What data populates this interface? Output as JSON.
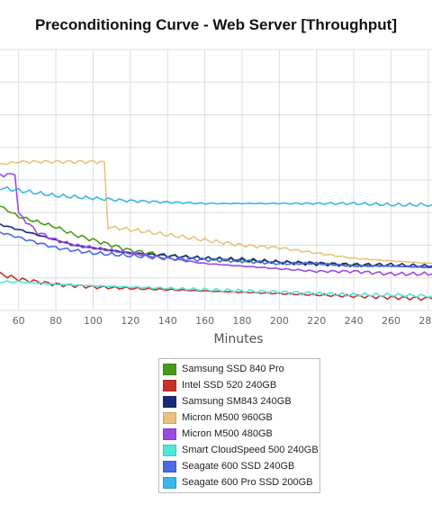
{
  "chart_data": {
    "type": "line",
    "title": "Preconditioning Curve - Web Server [Throughput]",
    "xlabel": "Minutes",
    "ylabel": "",
    "x_ticks": [
      60,
      80,
      100,
      120,
      140,
      160,
      180,
      200,
      220,
      240,
      260,
      280
    ],
    "xlim": [
      50,
      282
    ],
    "ylim": [
      0,
      100
    ],
    "grid": true,
    "legend_position": "bottom-center",
    "series": [
      {
        "name": "Samsung SSD 840 Pro",
        "color": "#4a9a1a",
        "points": [
          [
            50,
            40
          ],
          [
            60,
            36
          ],
          [
            70,
            34
          ],
          [
            80,
            32
          ],
          [
            90,
            29
          ],
          [
            100,
            27
          ],
          [
            110,
            25
          ],
          [
            120,
            23
          ],
          [
            140,
            21
          ],
          [
            160,
            20
          ],
          [
            180,
            19
          ],
          [
            200,
            18.5
          ],
          [
            220,
            18
          ],
          [
            240,
            17.5
          ],
          [
            260,
            17
          ],
          [
            282,
            16.5
          ]
        ]
      },
      {
        "name": "Intel SSD 520 240GB",
        "color": "#c8302a",
        "points": [
          [
            50,
            14
          ],
          [
            60,
            12
          ],
          [
            80,
            10
          ],
          [
            100,
            9
          ],
          [
            120,
            8.5
          ],
          [
            140,
            8
          ],
          [
            160,
            7.5
          ],
          [
            180,
            7
          ],
          [
            200,
            6.5
          ],
          [
            220,
            6
          ],
          [
            240,
            5.5
          ],
          [
            260,
            5
          ],
          [
            282,
            4.5
          ]
        ]
      },
      {
        "name": "Samsung SM843 240GB",
        "color": "#1a2a78",
        "points": [
          [
            50,
            33
          ],
          [
            60,
            31
          ],
          [
            70,
            29
          ],
          [
            80,
            27
          ],
          [
            90,
            25
          ],
          [
            100,
            24
          ],
          [
            120,
            22
          ],
          [
            140,
            21
          ],
          [
            160,
            20
          ],
          [
            180,
            19.5
          ],
          [
            200,
            18.5
          ],
          [
            220,
            18
          ],
          [
            240,
            17.5
          ],
          [
            260,
            17.5
          ],
          [
            282,
            17
          ]
        ]
      },
      {
        "name": "Micron M500 960GB",
        "color": "#e8c27e",
        "points": [
          [
            50,
            56
          ],
          [
            60,
            57
          ],
          [
            70,
            57
          ],
          [
            80,
            57
          ],
          [
            90,
            57
          ],
          [
            100,
            57
          ],
          [
            106,
            57
          ],
          [
            108,
            32
          ],
          [
            120,
            31
          ],
          [
            140,
            29
          ],
          [
            160,
            27
          ],
          [
            180,
            25
          ],
          [
            200,
            24
          ],
          [
            220,
            22
          ],
          [
            240,
            20
          ],
          [
            260,
            19
          ],
          [
            282,
            18
          ]
        ]
      },
      {
        "name": "Micron M500 480GB",
        "color": "#9b4ae6",
        "points": [
          [
            50,
            52
          ],
          [
            58,
            52
          ],
          [
            60,
            37
          ],
          [
            70,
            30
          ],
          [
            80,
            27
          ],
          [
            90,
            25
          ],
          [
            100,
            24
          ],
          [
            120,
            22
          ],
          [
            140,
            20
          ],
          [
            160,
            18
          ],
          [
            180,
            17
          ],
          [
            200,
            16
          ],
          [
            220,
            15
          ],
          [
            240,
            15
          ],
          [
            260,
            14
          ],
          [
            282,
            14
          ]
        ]
      },
      {
        "name": "Smart CloudSpeed 500 240GB",
        "color": "#4ee8d8",
        "points": [
          [
            50,
            11
          ],
          [
            60,
            11
          ],
          [
            80,
            10
          ],
          [
            100,
            9.5
          ],
          [
            120,
            9
          ],
          [
            140,
            8.5
          ],
          [
            160,
            8
          ],
          [
            180,
            7.5
          ],
          [
            200,
            7
          ],
          [
            220,
            6.5
          ],
          [
            240,
            6
          ],
          [
            260,
            6
          ],
          [
            282,
            5.5
          ]
        ]
      },
      {
        "name": "Seagate 600 SSD 240GB",
        "color": "#4a6ae6",
        "points": [
          [
            50,
            30
          ],
          [
            60,
            28
          ],
          [
            70,
            26
          ],
          [
            80,
            24
          ],
          [
            90,
            23
          ],
          [
            100,
            22
          ],
          [
            120,
            21
          ],
          [
            140,
            20
          ],
          [
            160,
            19.5
          ],
          [
            180,
            19
          ],
          [
            200,
            18
          ],
          [
            220,
            18
          ],
          [
            240,
            17
          ],
          [
            260,
            17
          ],
          [
            282,
            16.5
          ]
        ]
      },
      {
        "name": "Seagate 600 Pro SSD 200GB",
        "color": "#3ab6e8",
        "points": [
          [
            50,
            47
          ],
          [
            60,
            46
          ],
          [
            70,
            45
          ],
          [
            80,
            44
          ],
          [
            100,
            43
          ],
          [
            120,
            42
          ],
          [
            140,
            41.5
          ],
          [
            160,
            41
          ],
          [
            180,
            41
          ],
          [
            200,
            41
          ],
          [
            220,
            41
          ],
          [
            240,
            41
          ],
          [
            260,
            40.5
          ],
          [
            282,
            40.5
          ]
        ]
      }
    ]
  }
}
